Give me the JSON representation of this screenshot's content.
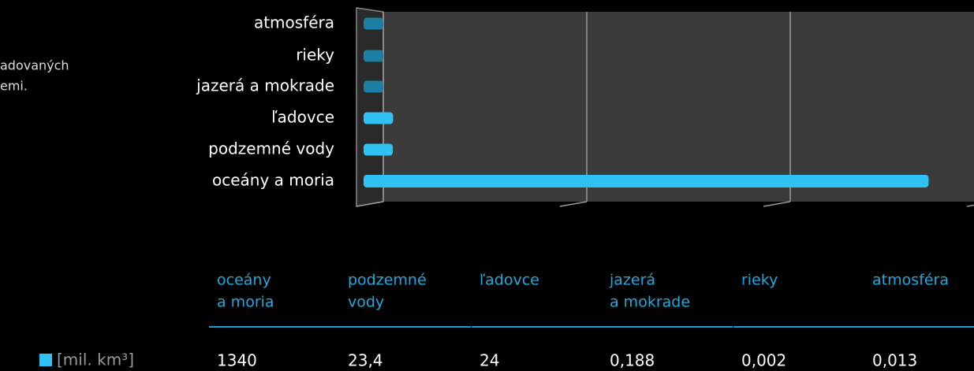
{
  "intro_fragments": [
    "adovaných",
    "emi."
  ],
  "chart_data": {
    "type": "bar",
    "orientation": "horizontal",
    "categories": [
      "atmosféra",
      "rieky",
      "jazerá a mokrade",
      "ľadovce",
      "podzemné vody",
      "oceány a moria"
    ],
    "values": [
      0.013,
      0.002,
      0.188,
      24,
      23.4,
      1340
    ],
    "color": "#2ec3f2",
    "xlim": [
      0,
      1500
    ],
    "xticks": [
      0,
      500,
      1000,
      1500
    ],
    "grid": true
  },
  "table": {
    "headers": [
      [
        "oceány",
        "a moria"
      ],
      [
        "podzemné",
        "vody"
      ],
      [
        "ľadovce"
      ],
      [
        "jazerá",
        "a mokrade"
      ],
      [
        "rieky"
      ],
      [
        "atmosféra"
      ]
    ],
    "row_label": "[mil. km³]",
    "cells": [
      "1340",
      "23,4",
      "24",
      "0,188",
      "0,002",
      "0,013"
    ]
  }
}
